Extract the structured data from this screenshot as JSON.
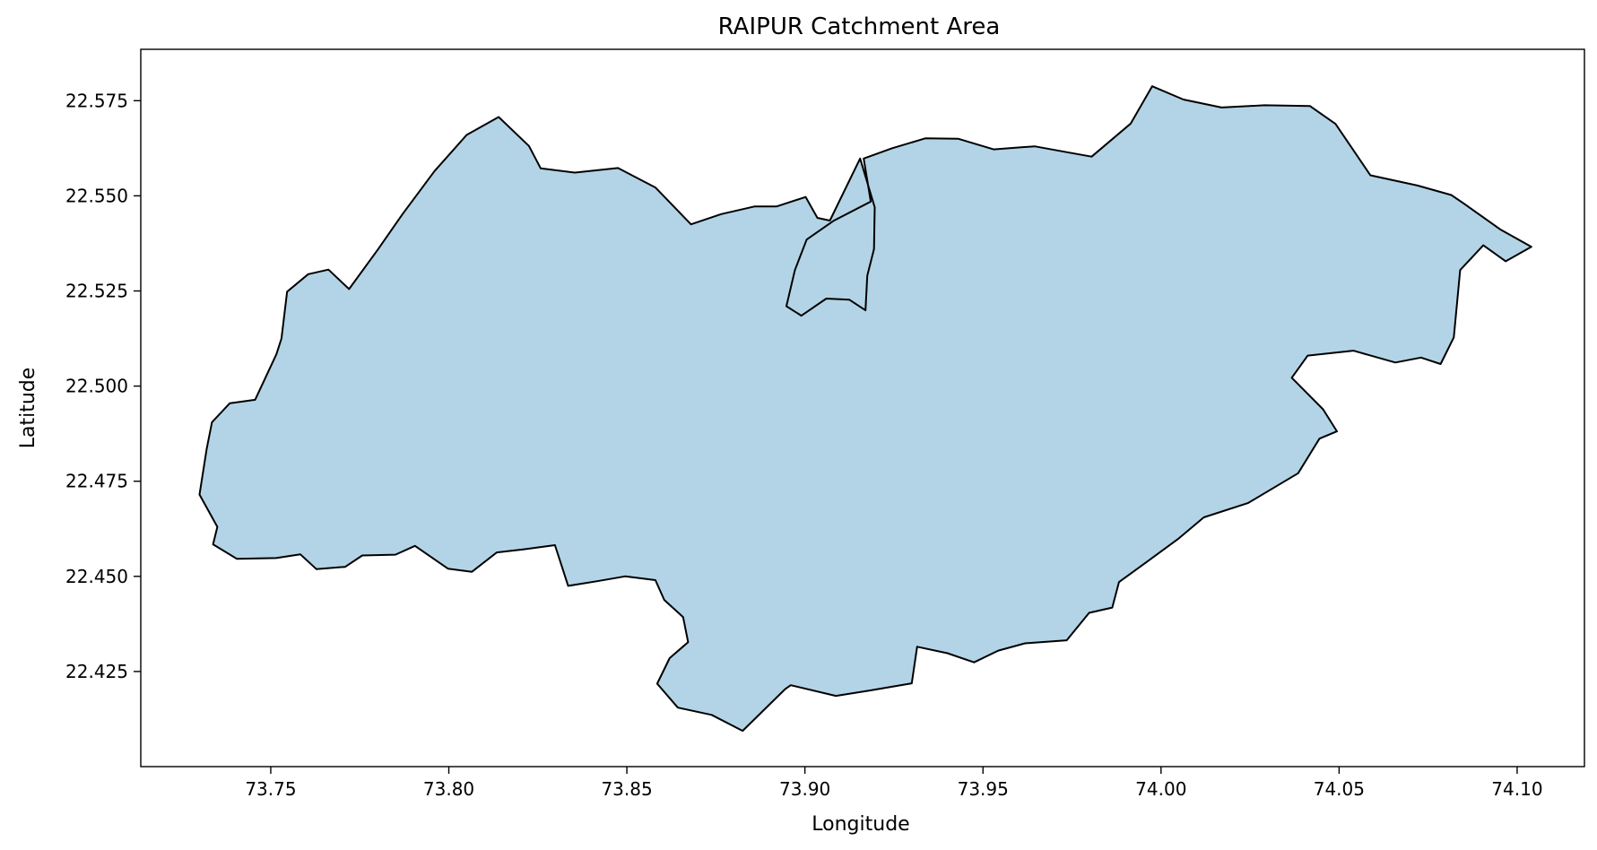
{
  "chart_data": {
    "type": "map",
    "title": "RAIPUR Catchment Area",
    "xlabel": "Longitude",
    "ylabel": "Latitude",
    "xlim": [
      73.7135,
      74.1189
    ],
    "ylim": [
      22.4,
      22.5885
    ],
    "x_ticks": [
      "73.75",
      "73.80",
      "73.85",
      "73.90",
      "73.95",
      "74.00",
      "74.05",
      "74.10"
    ],
    "y_ticks": [
      "22.425",
      "22.450",
      "22.475",
      "22.500",
      "22.525",
      "22.550",
      "22.575"
    ],
    "grid": false,
    "fill_color": "#b3d4e6",
    "edge_color": "#000000",
    "boundary": [
      [
        73.7338,
        22.4584
      ],
      [
        73.7405,
        22.4546
      ],
      [
        73.7515,
        22.4548
      ],
      [
        73.7583,
        22.4558
      ],
      [
        73.7628,
        22.4519
      ],
      [
        73.7709,
        22.4525
      ],
      [
        73.7757,
        22.4555
      ],
      [
        73.785,
        22.4557
      ],
      [
        73.7905,
        22.458
      ],
      [
        73.7998,
        22.452
      ],
      [
        73.8065,
        22.4512
      ],
      [
        73.8135,
        22.4563
      ],
      [
        73.8209,
        22.4571
      ],
      [
        73.8298,
        22.4582
      ],
      [
        73.8335,
        22.4475
      ],
      [
        73.8415,
        22.4487
      ],
      [
        73.8495,
        22.45
      ],
      [
        73.858,
        22.449
      ],
      [
        73.8605,
        22.4438
      ],
      [
        73.8658,
        22.4393
      ],
      [
        73.8672,
        22.4327
      ],
      [
        73.862,
        22.4285
      ],
      [
        73.8585,
        22.4218
      ],
      [
        73.8643,
        22.4155
      ],
      [
        73.8738,
        22.4136
      ],
      [
        73.8825,
        22.4094
      ],
      [
        73.8945,
        22.4204
      ],
      [
        73.896,
        22.4214
      ],
      [
        73.9087,
        22.4186
      ],
      [
        73.9182,
        22.42
      ],
      [
        73.93,
        22.4219
      ],
      [
        73.9315,
        22.4315
      ],
      [
        73.94,
        22.4298
      ],
      [
        73.9475,
        22.4274
      ],
      [
        73.9543,
        22.4305
      ],
      [
        73.9618,
        22.4324
      ],
      [
        73.9735,
        22.4332
      ],
      [
        73.9798,
        22.4404
      ],
      [
        73.9863,
        22.4418
      ],
      [
        73.9882,
        22.4485
      ],
      [
        73.996,
        22.4538
      ],
      [
        74.005,
        22.46
      ],
      [
        74.012,
        22.4655
      ],
      [
        74.0245,
        22.4693
      ],
      [
        74.0385,
        22.4771
      ],
      [
        74.0445,
        22.4862
      ],
      [
        74.0494,
        22.4881
      ],
      [
        74.0455,
        22.4939
      ],
      [
        74.0367,
        22.5022
      ],
      [
        74.0412,
        22.508
      ],
      [
        74.054,
        22.5093
      ],
      [
        74.0658,
        22.5062
      ],
      [
        74.073,
        22.5075
      ],
      [
        74.0785,
        22.5058
      ],
      [
        74.0822,
        22.5128
      ],
      [
        74.084,
        22.5305
      ],
      [
        74.0905,
        22.537
      ],
      [
        74.0968,
        22.5328
      ],
      [
        74.104,
        22.5366
      ],
      [
        74.0952,
        22.5412
      ],
      [
        74.085,
        22.548
      ],
      [
        74.0815,
        22.5502
      ],
      [
        74.072,
        22.5527
      ],
      [
        74.0588,
        22.5554
      ],
      [
        74.049,
        22.5689
      ],
      [
        74.0418,
        22.5736
      ],
      [
        74.029,
        22.5738
      ],
      [
        74.017,
        22.5732
      ],
      [
        74.0063,
        22.5753
      ],
      [
        73.9975,
        22.5788
      ],
      [
        73.9915,
        22.569
      ],
      [
        73.9805,
        22.5603
      ],
      [
        73.9728,
        22.5616
      ],
      [
        73.9645,
        22.563
      ],
      [
        73.953,
        22.5622
      ],
      [
        73.943,
        22.565
      ],
      [
        73.9338,
        22.5651
      ],
      [
        73.9245,
        22.5625
      ],
      [
        73.9165,
        22.5598
      ],
      [
        73.9185,
        22.5485
      ],
      [
        73.908,
        22.5434
      ],
      [
        73.9005,
        22.5385
      ],
      [
        73.8972,
        22.5305
      ],
      [
        73.8948,
        22.521
      ],
      [
        73.899,
        22.5185
      ],
      [
        73.906,
        22.523
      ],
      [
        73.9125,
        22.5227
      ],
      [
        73.917,
        22.5199
      ],
      [
        73.9175,
        22.529
      ],
      [
        73.9194,
        22.536
      ],
      [
        73.9196,
        22.547
      ],
      [
        73.9155,
        22.5598
      ],
      [
        73.907,
        22.5435
      ],
      [
        73.9035,
        22.5442
      ],
      [
        73.9002,
        22.5497
      ],
      [
        73.892,
        22.5472
      ],
      [
        73.8858,
        22.5472
      ],
      [
        73.8765,
        22.5452
      ],
      [
        73.868,
        22.5425
      ],
      [
        73.858,
        22.5522
      ],
      [
        73.8475,
        22.5573
      ],
      [
        73.8354,
        22.5561
      ],
      [
        73.8258,
        22.5572
      ],
      [
        73.8225,
        22.5631
      ],
      [
        73.814,
        22.5707
      ],
      [
        73.805,
        22.566
      ],
      [
        73.796,
        22.5565
      ],
      [
        73.787,
        22.5452
      ],
      [
        73.7801,
        22.5359
      ],
      [
        73.772,
        22.5255
      ],
      [
        73.7662,
        22.5306
      ],
      [
        73.7605,
        22.5294
      ],
      [
        73.7546,
        22.5248
      ],
      [
        73.753,
        22.5125
      ],
      [
        73.7516,
        22.5084
      ],
      [
        73.7456,
        22.4964
      ],
      [
        73.7385,
        22.4955
      ],
      [
        73.7335,
        22.4905
      ],
      [
        73.732,
        22.4835
      ],
      [
        73.73,
        22.4715
      ],
      [
        73.735,
        22.463
      ]
    ]
  }
}
